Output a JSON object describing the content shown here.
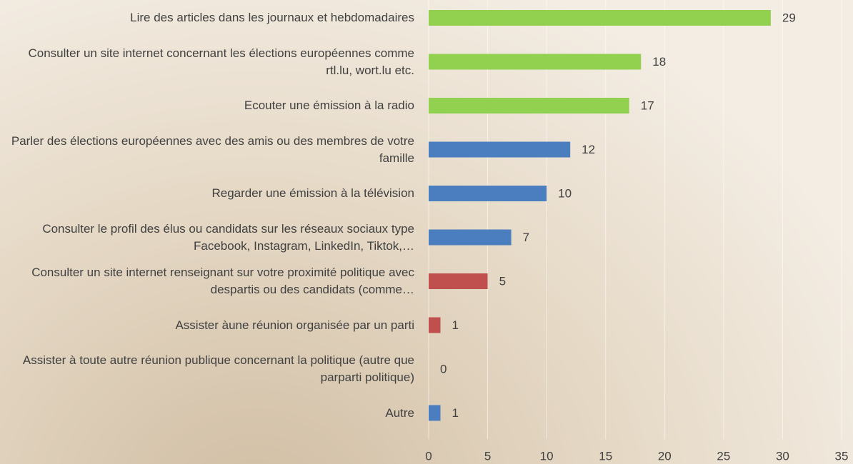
{
  "chart_data": {
    "type": "bar",
    "orientation": "horizontal",
    "categories": [
      "Lire des articles  dans les journaux  et hebdomadaires",
      "Consulter un site internet concernant les élections européennes comme rtl.lu, wort.lu etc.",
      "Ecouter une  émission à la radio",
      "Parler des élections  européennes avec des amis ou des membres de votre famille",
      "Regarder une émission à la télévision",
      "Consulter le profil des élus ou candidats sur les réseaux sociaux type Facebook, Instagram, LinkedIn, Tiktok,…",
      "Consulter un site internet  renseignant sur votre proximité politique avec despartis ou des candidats (comme…",
      "Assister àune réunion  organisée par un parti",
      "Assister à toute  autre réunion publique concernant la politique (autre que parparti politique)",
      "Autre"
    ],
    "values": [
      29,
      18,
      17,
      12,
      10,
      7,
      5,
      1,
      0,
      1
    ],
    "colors": [
      "#92d050",
      "#92d050",
      "#92d050",
      "#4a7ebf",
      "#4a7ebf",
      "#4a7ebf",
      "#c0504d",
      "#c0504d",
      "#4a7ebf",
      "#4a7ebf"
    ],
    "xlim": [
      0,
      35
    ],
    "xticks": [
      0,
      5,
      10,
      15,
      20,
      25,
      30,
      35
    ],
    "grid": true
  }
}
